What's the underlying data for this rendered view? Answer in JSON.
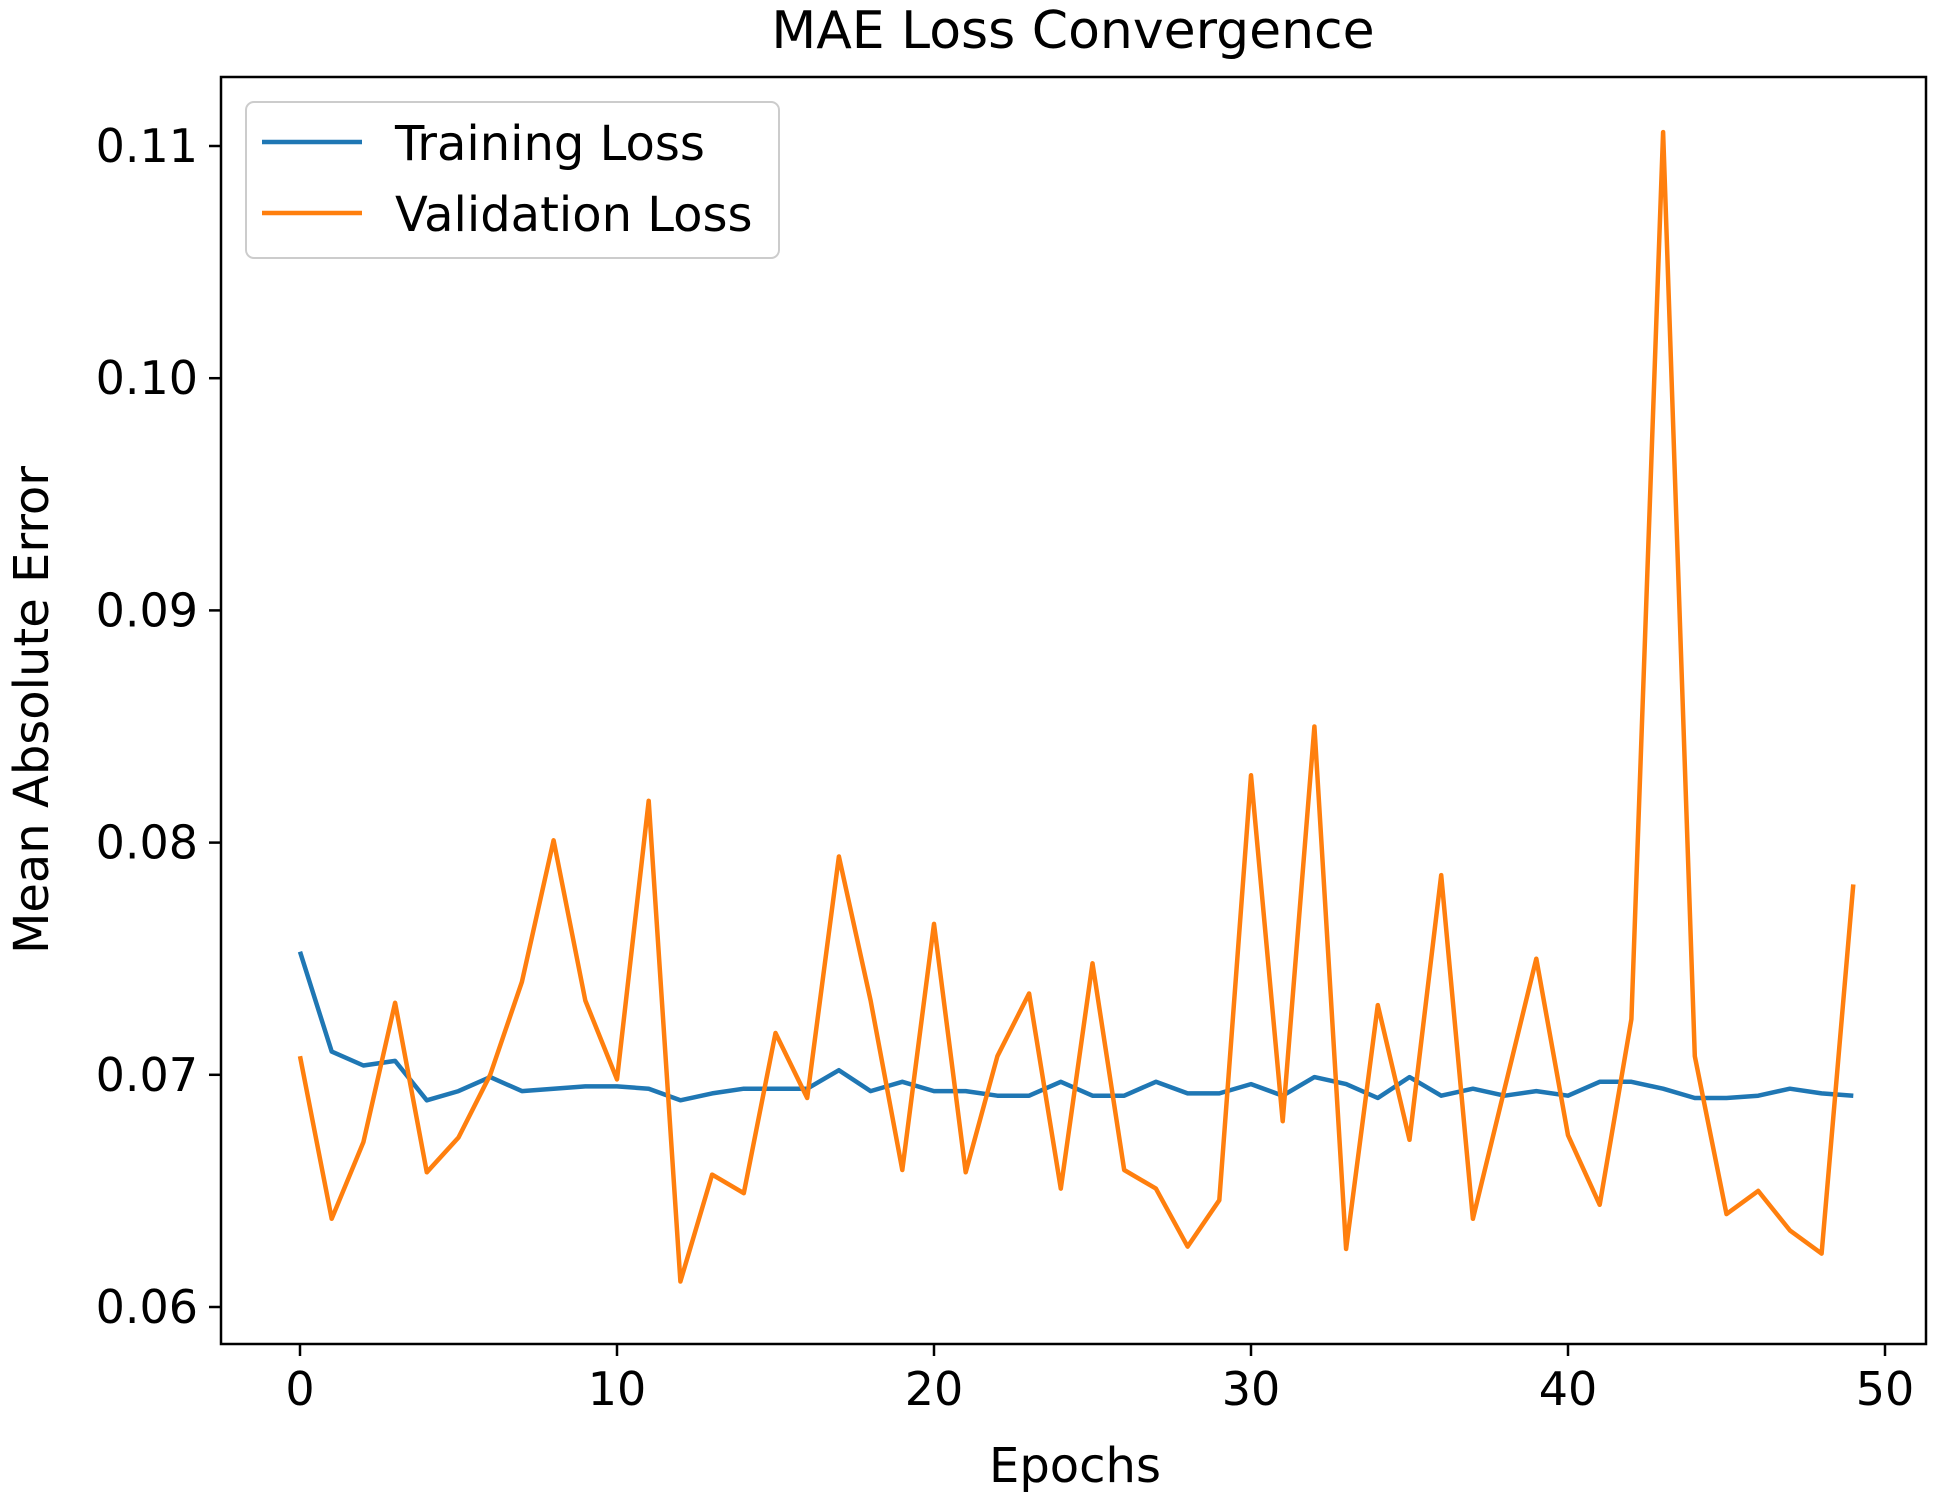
{
  "chart_data": {
    "type": "line",
    "title": "MAE Loss Convergence",
    "xlabel": "Epochs",
    "ylabel": "Mean Absolute Error",
    "xlim": [
      -2.5,
      51.5
    ],
    "ylim": [
      0.0585,
      0.113
    ],
    "xticks": [
      0,
      10,
      20,
      30,
      40,
      50
    ],
    "xtick_labels": [
      "0",
      "10",
      "20",
      "30",
      "40",
      "50"
    ],
    "yticks": [
      0.06,
      0.07,
      0.08,
      0.09,
      0.1,
      0.11
    ],
    "ytick_labels": [
      "0.06",
      "0.07",
      "0.08",
      "0.09",
      "0.10",
      "0.11"
    ],
    "grid": false,
    "legend_position": "top-left",
    "x": [
      0,
      1,
      2,
      3,
      4,
      5,
      6,
      7,
      8,
      9,
      10,
      11,
      12,
      13,
      14,
      15,
      16,
      17,
      18,
      19,
      20,
      21,
      22,
      23,
      24,
      25,
      26,
      27,
      28,
      29,
      30,
      31,
      32,
      33,
      34,
      35,
      36,
      37,
      38,
      39,
      40,
      41,
      42,
      43,
      44,
      45,
      46,
      47,
      48,
      49
    ],
    "series": [
      {
        "name": "Training Loss",
        "color": "#1f77b4",
        "values": [
          0.0753,
          0.071,
          0.0704,
          0.0706,
          0.0689,
          0.0693,
          0.0699,
          0.0693,
          0.0694,
          0.0695,
          0.0695,
          0.0694,
          0.0689,
          0.0692,
          0.0694,
          0.0694,
          0.0694,
          0.0702,
          0.0693,
          0.0697,
          0.0693,
          0.0693,
          0.0691,
          0.0691,
          0.0697,
          0.0691,
          0.0691,
          0.0697,
          0.0692,
          0.0692,
          0.0696,
          0.0691,
          0.0699,
          0.0696,
          0.069,
          0.0699,
          0.0691,
          0.0694,
          0.0691,
          0.0693,
          0.0691,
          0.0697,
          0.0697,
          0.0694,
          0.069,
          0.069,
          0.0691,
          0.0694,
          0.0692,
          0.0691
        ]
      },
      {
        "name": "Validation Loss",
        "color": "#ff7f0e",
        "values": [
          0.0708,
          0.0638,
          0.0671,
          0.0731,
          0.0658,
          0.0673,
          0.07,
          0.074,
          0.0801,
          0.0732,
          0.0698,
          0.0818,
          0.0611,
          0.0657,
          0.0649,
          0.0718,
          0.069,
          0.0794,
          0.0732,
          0.0659,
          0.0765,
          0.0658,
          0.0708,
          0.0735,
          0.0651,
          0.0748,
          0.0659,
          0.0651,
          0.0626,
          0.0646,
          0.0829,
          0.068,
          0.085,
          0.0625,
          0.073,
          0.0672,
          0.0786,
          0.0638,
          0.0694,
          0.075,
          0.0674,
          0.0644,
          0.0724,
          0.1106,
          0.0708,
          0.064,
          0.065,
          0.0633,
          0.0623,
          0.0782
        ]
      }
    ]
  }
}
